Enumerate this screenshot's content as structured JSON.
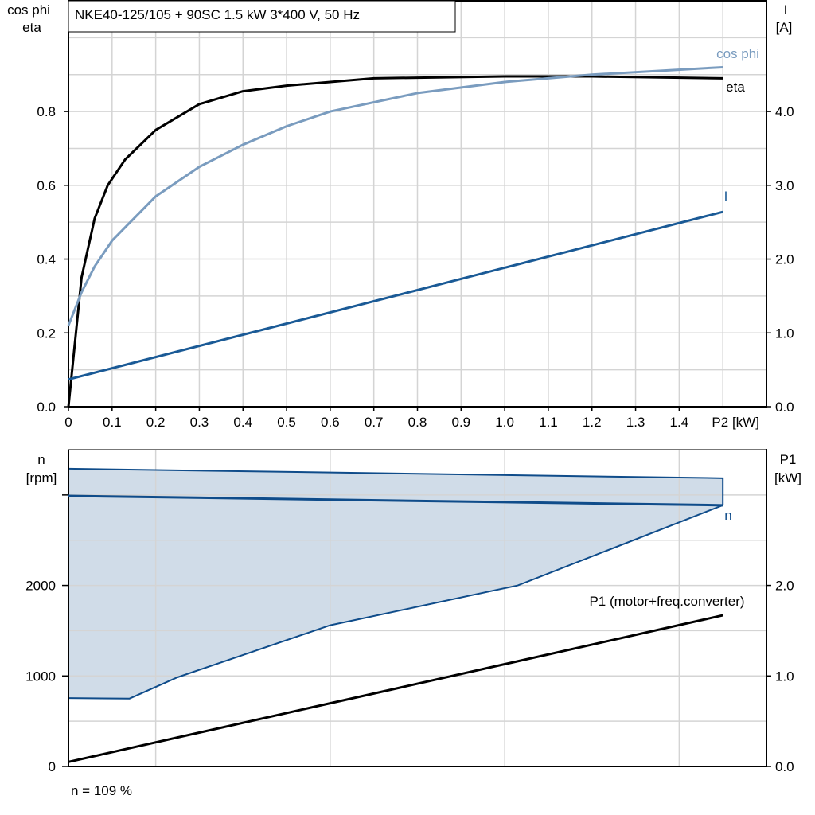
{
  "chart_data": [
    {
      "type": "line",
      "title": "NKE40-125/105 + 90SC   1.5 kW   3*400 V, 50 Hz",
      "xlabel": "P2 [kW]",
      "ylabel_left": [
        "cos phi",
        "eta"
      ],
      "ylabel_right": [
        "I",
        "[A]"
      ],
      "xlim": [
        0,
        1.6
      ],
      "ylim_left": [
        0,
        1.1
      ],
      "ylim_right": [
        0,
        5.5
      ],
      "grid": true,
      "x_ticks": [
        "0",
        "0.1",
        "0.2",
        "0.3",
        "0.4",
        "0.5",
        "0.6",
        "0.7",
        "0.8",
        "0.9",
        "1.0",
        "1.1",
        "1.2",
        "1.3",
        "1.4"
      ],
      "y_ticks_left": [
        "0.0",
        "0.2",
        "0.4",
        "0.6",
        "0.8"
      ],
      "y_ticks_right": [
        "0.0",
        "1.0",
        "2.0",
        "3.0",
        "4.0"
      ],
      "series": [
        {
          "name": "eta",
          "axis": "left",
          "color": "#000000",
          "x": [
            0,
            0.03,
            0.06,
            0.09,
            0.13,
            0.2,
            0.3,
            0.4,
            0.5,
            0.7,
            1.0,
            1.2,
            1.5
          ],
          "y": [
            0,
            0.35,
            0.51,
            0.6,
            0.67,
            0.75,
            0.82,
            0.855,
            0.87,
            0.89,
            0.895,
            0.895,
            0.89
          ]
        },
        {
          "name": "cos phi",
          "axis": "left",
          "color": "#7a9cbf",
          "x": [
            0,
            0.03,
            0.06,
            0.1,
            0.2,
            0.3,
            0.4,
            0.5,
            0.6,
            0.8,
            1.0,
            1.2,
            1.5
          ],
          "y": [
            0.22,
            0.31,
            0.38,
            0.45,
            0.57,
            0.65,
            0.71,
            0.76,
            0.8,
            0.85,
            0.88,
            0.9,
            0.92
          ]
        },
        {
          "name": "I",
          "axis": "right",
          "color": "#1a5a96",
          "x": [
            0,
            1.5
          ],
          "y": [
            0.37,
            2.64
          ]
        }
      ]
    },
    {
      "type": "area",
      "ylabel_left": [
        "n",
        "[rpm]"
      ],
      "ylabel_right": [
        "P1",
        "[kW]"
      ],
      "xlim": [
        0,
        1.6
      ],
      "ylim_left": [
        0,
        3500
      ],
      "ylim_right": [
        0,
        3.5
      ],
      "grid": true,
      "y_ticks_left": [
        "0",
        "1000",
        "2000"
      ],
      "y_ticks_right": [
        "0.0",
        "1.0",
        "2.0"
      ],
      "footer": "n = 109 %",
      "series": [
        {
          "name": "n",
          "axis": "left",
          "color": "#0f4c8a",
          "x": [
            0,
            1.5
          ],
          "y": [
            2990,
            2886
          ]
        },
        {
          "name": "P1 (motor+freq.converter)",
          "axis": "right",
          "color": "#000000",
          "x": [
            0,
            1.5
          ],
          "y": [
            0.05,
            1.67
          ]
        }
      ],
      "range_area": {
        "fill": "#d0dce8",
        "edge": "#0f4c8a",
        "upper": {
          "x": [
            0,
            1.5
          ],
          "y": [
            3290,
            3185
          ]
        },
        "lower": {
          "x": [
            0,
            0.14,
            0.25,
            0.6,
            1.03,
            1.5
          ],
          "y": [
            755,
            750,
            985,
            1560,
            2000,
            2886
          ]
        }
      }
    }
  ]
}
